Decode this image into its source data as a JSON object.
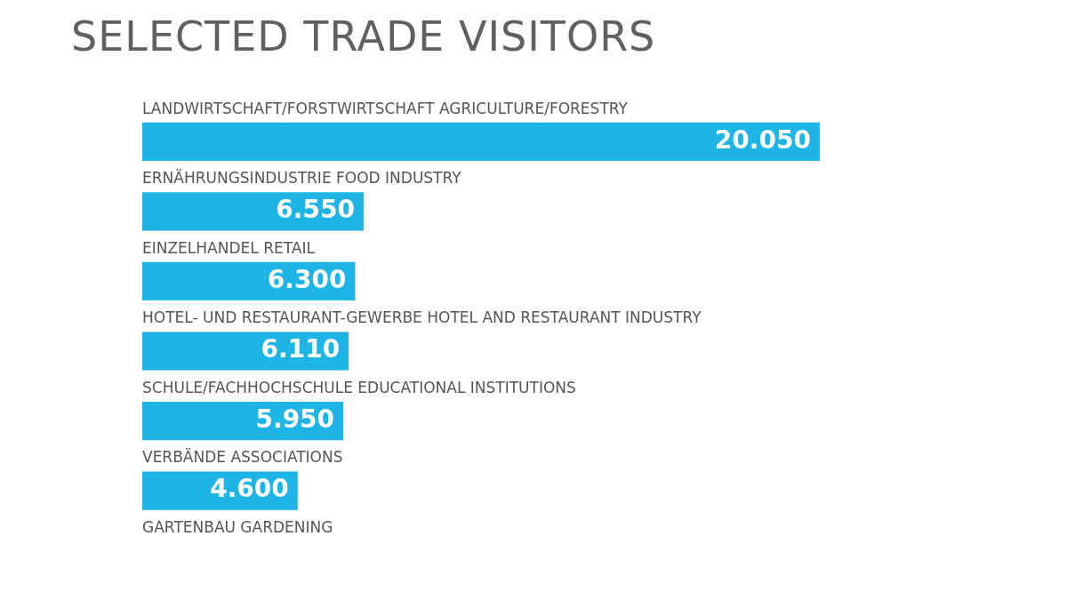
{
  "chart_data": {
    "type": "bar",
    "orientation": "horizontal",
    "title": "SELECTED TRADE VISITORS",
    "categories": [
      "LANDWIRTSCHAFT/FORSTWIRTSCHAFT AGRICULTURE/FORESTRY",
      "ERNÄHRUNGSINDUSTRIE FOOD INDUSTRY",
      "EINZELHANDEL RETAIL",
      "HOTEL- UND RESTAURANT-GEWERBE HOTEL AND RESTAURANT INDUSTRY",
      "SCHULE/FACHHOCHSCHULE EDUCATIONAL INSTITUTIONS",
      "VERBÄNDE ASSOCIATIONS",
      "GARTENBAU GARDENING"
    ],
    "values": [
      20050,
      6550,
      6300,
      6110,
      5950,
      4600,
      null
    ],
    "value_labels": [
      "20.050",
      "6.550",
      "6.300",
      "6.110",
      "5.950",
      "4.600",
      null
    ],
    "color": "#1eb4e6",
    "legend": false
  }
}
